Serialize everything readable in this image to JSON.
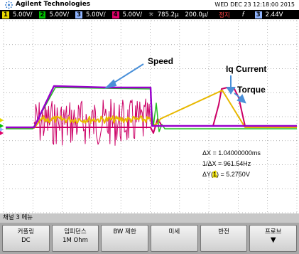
{
  "header": {
    "brand": "Agilent Technologies",
    "datetime": "WED DEC 23 12:18:00 2015"
  },
  "channel_bar": {
    "channels": [
      {
        "number": "1",
        "scale": "5.00V/"
      },
      {
        "number": "2",
        "scale": "5.00V/"
      },
      {
        "number": "3",
        "scale": "5.00V/"
      },
      {
        "number": "4",
        "scale": "5.00V/"
      }
    ],
    "delay": "785.2µ",
    "timebase": "200.0µ/",
    "state": "정지",
    "trigger_slope": "f",
    "trigger_channel": "3",
    "trigger_level": "2.44V"
  },
  "annotations": {
    "speed": "Speed",
    "iq_current": "Iq Current",
    "torque": "Torque"
  },
  "measurements": {
    "delta_x": "ΔX = 1.04000000ms",
    "inverse_delta_x": "1/ΔX = 961.54Hz",
    "delta_y": {
      "prefix": "ΔY(",
      "channel": "1",
      "suffix": ") = 5.2750V"
    }
  },
  "menu_title": "채널 3 메뉴",
  "softkeys": [
    {
      "label": "커플링",
      "value": "DC"
    },
    {
      "label": "임피던스",
      "value": "1M Ohm"
    },
    {
      "label": "BW 제한"
    },
    {
      "label": "미세"
    },
    {
      "label": "반전"
    },
    {
      "label": "프로브"
    }
  ]
}
